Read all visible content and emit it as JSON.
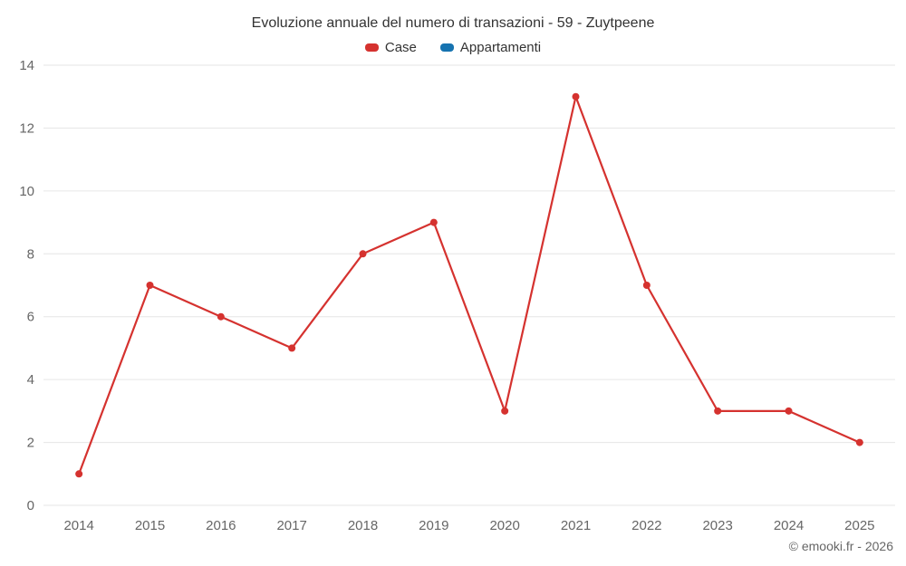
{
  "title": "Evoluzione annuale del numero di transazioni - 59 - Zuytpeene",
  "footer": "© emooki.fr - 2026",
  "legend": {
    "items": [
      {
        "label": "Case",
        "color": "#d5322f"
      },
      {
        "label": "Appartamenti",
        "color": "#1673b0"
      }
    ]
  },
  "colors": {
    "grid": "#e6e6e6",
    "axis_text": "#666666",
    "title_text": "#333333"
  },
  "chart_data": {
    "type": "line",
    "title": "Evoluzione annuale del numero di transazioni - 59 - Zuytpeene",
    "categories": [
      "2014",
      "2015",
      "2016",
      "2017",
      "2018",
      "2019",
      "2020",
      "2021",
      "2022",
      "2023",
      "2024",
      "2025"
    ],
    "series": [
      {
        "name": "Case",
        "color": "#d5322f",
        "values": [
          1,
          7,
          6,
          5,
          8,
          9,
          3,
          13,
          7,
          3,
          3,
          2
        ]
      },
      {
        "name": "Appartamenti",
        "color": "#1673b0",
        "values": []
      }
    ],
    "xlabel": "",
    "ylabel": "",
    "ylim": [
      0,
      14
    ],
    "yticks": [
      0,
      2,
      4,
      6,
      8,
      10,
      12,
      14
    ],
    "grid": "horizontal",
    "legend_position": "top"
  }
}
